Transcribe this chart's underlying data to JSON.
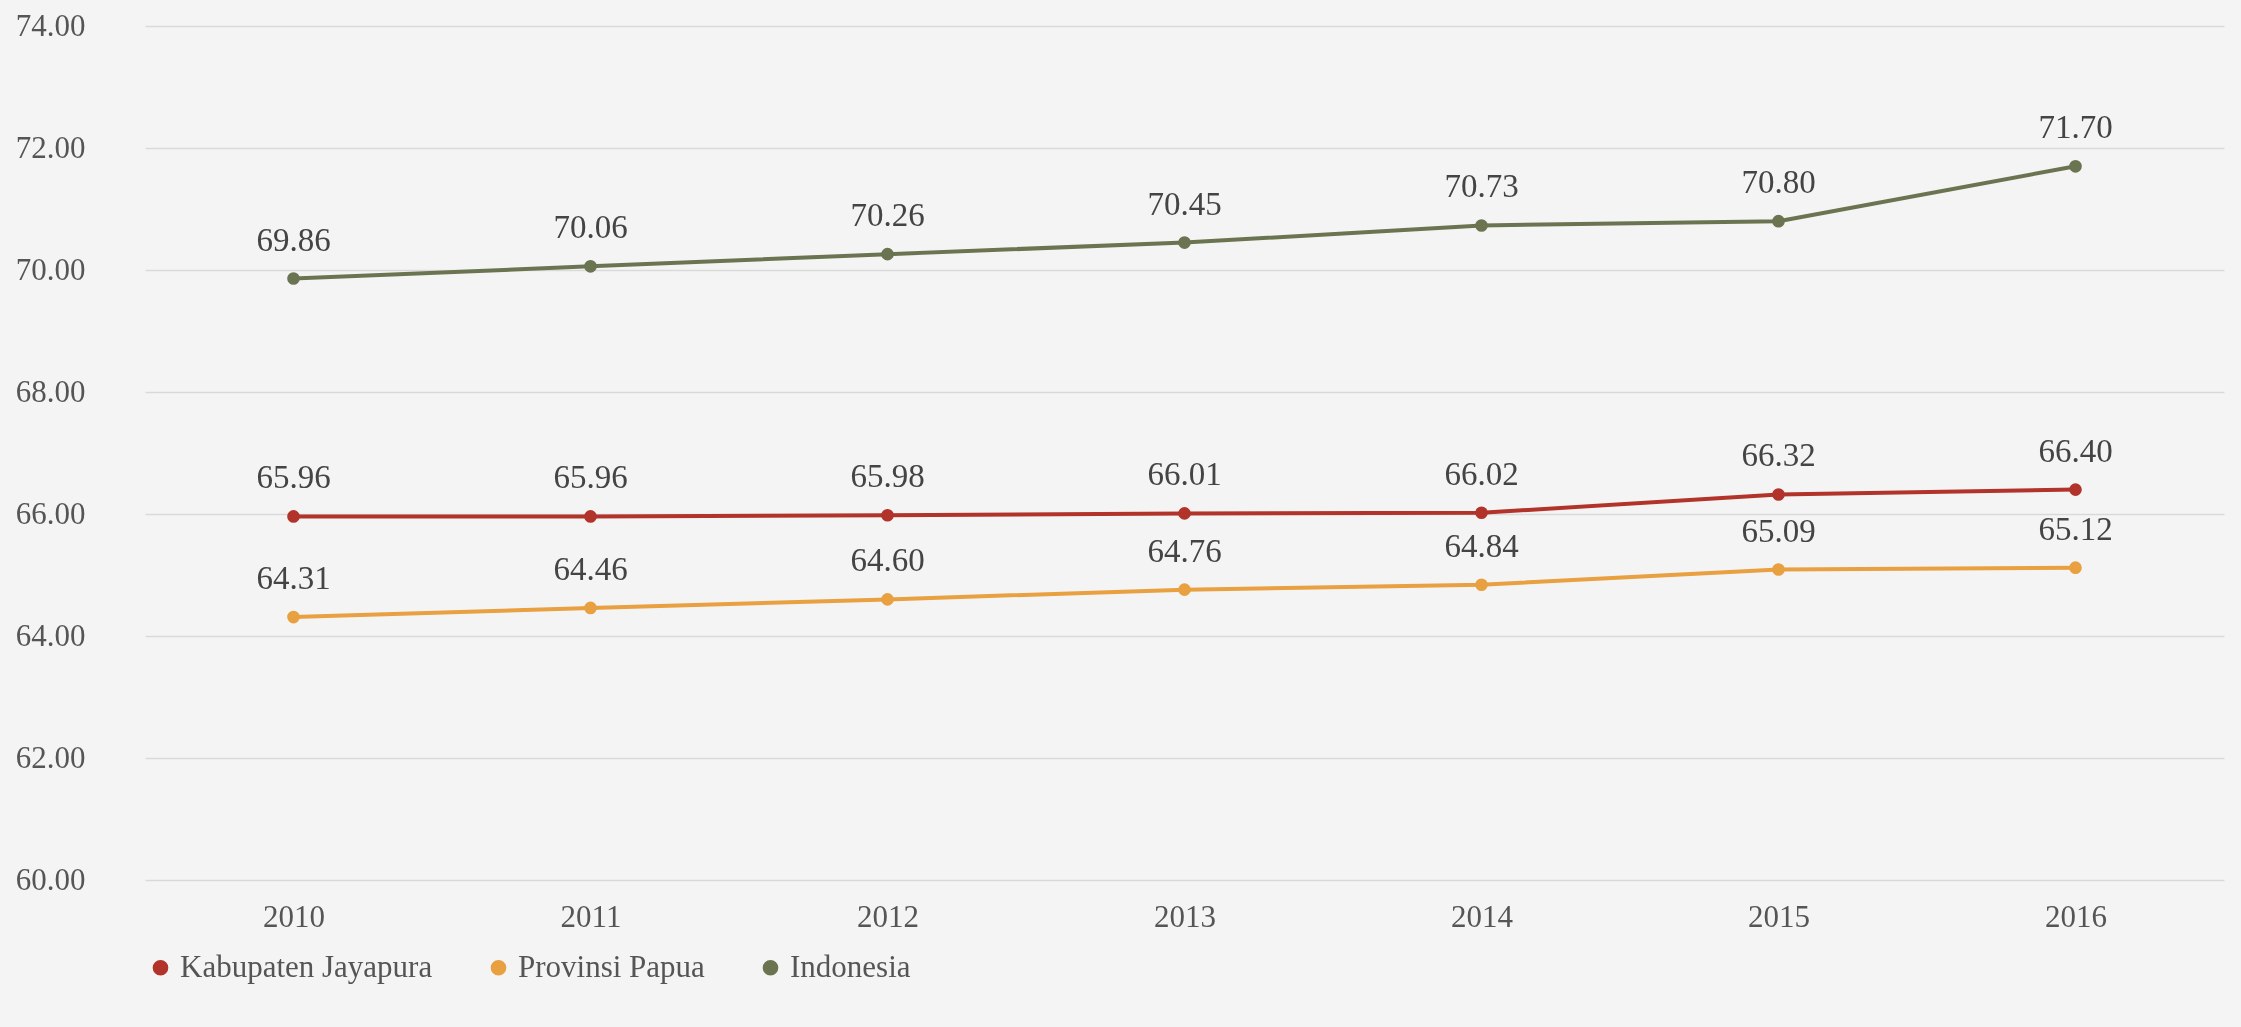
{
  "chart_data": {
    "type": "line",
    "categories": [
      "2010",
      "2011",
      "2012",
      "2013",
      "2014",
      "2015",
      "2016"
    ],
    "series": [
      {
        "name": "Kabupaten Jayapura",
        "color": "#b1332a",
        "values": [
          65.96,
          65.96,
          65.98,
          66.01,
          66.02,
          66.32,
          66.4
        ],
        "value_labels": [
          "65.96",
          "65.96",
          "65.98",
          "66.01",
          "66.02",
          "66.32",
          "66.40"
        ]
      },
      {
        "name": "Provinsi Papua",
        "color": "#e8a040",
        "values": [
          64.31,
          64.46,
          64.6,
          64.76,
          64.84,
          65.09,
          65.12
        ],
        "value_labels": [
          "64.31",
          "64.46",
          "64.60",
          "64.76",
          "64.84",
          "65.09",
          "65.12"
        ]
      },
      {
        "name": "Indonesia",
        "color": "#6b7450",
        "values": [
          69.86,
          70.06,
          70.26,
          70.45,
          70.73,
          70.8,
          71.7
        ],
        "value_labels": [
          "69.86",
          "70.06",
          "70.26",
          "70.45",
          "70.73",
          "70.80",
          "71.70"
        ]
      }
    ],
    "ylim": [
      60,
      74
    ],
    "yticks": [
      {
        "value": 60,
        "label": "60.00"
      },
      {
        "value": 62,
        "label": "62.00"
      },
      {
        "value": 64,
        "label": "64.00"
      },
      {
        "value": 66,
        "label": "66.00"
      },
      {
        "value": 68,
        "label": "68.00"
      },
      {
        "value": 70,
        "label": "70.00"
      },
      {
        "value": 72,
        "label": "72.00"
      },
      {
        "value": 74,
        "label": "74.00"
      }
    ],
    "grid": "y",
    "legend": "bottom",
    "marker": "circle",
    "line_style": "solid"
  }
}
